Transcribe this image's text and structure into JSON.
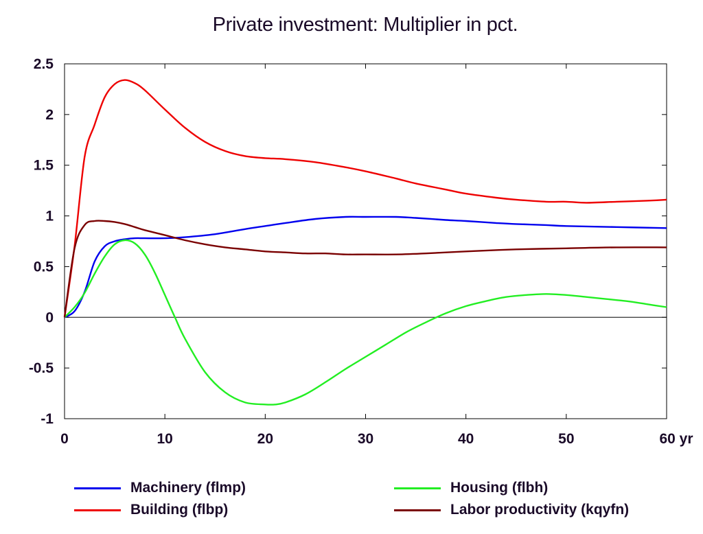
{
  "chart_data": {
    "type": "line",
    "title": "Private investment: Multiplier in pct.",
    "xlabel": "",
    "ylabel": "",
    "x_unit_label": "yr",
    "xlim": [
      0,
      60
    ],
    "ylim": [
      -1,
      2.5
    ],
    "x_ticks": [
      "0",
      "10",
      "20",
      "30",
      "40",
      "50",
      "60"
    ],
    "y_ticks": [
      "2.5",
      "2",
      "1.5",
      "1",
      "0.5",
      "0",
      "-0.5",
      "-1"
    ],
    "grid": false,
    "legend_position": "bottom",
    "series": [
      {
        "name": "Machinery (flmp)",
        "color": "#0000ee",
        "x": [
          0,
          1,
          2,
          3,
          4,
          5,
          6,
          7,
          8,
          10,
          12,
          15,
          18,
          20,
          22,
          25,
          28,
          30,
          33,
          35,
          38,
          40,
          43,
          45,
          48,
          50,
          55,
          60
        ],
        "y": [
          0,
          0.06,
          0.25,
          0.55,
          0.7,
          0.75,
          0.77,
          0.78,
          0.78,
          0.78,
          0.79,
          0.82,
          0.87,
          0.9,
          0.93,
          0.97,
          0.99,
          0.99,
          0.99,
          0.98,
          0.96,
          0.95,
          0.93,
          0.92,
          0.91,
          0.9,
          0.89,
          0.88
        ]
      },
      {
        "name": "Building (flbp)",
        "color": "#ee0000",
        "x": [
          0,
          1,
          2,
          3,
          4,
          5,
          6,
          7,
          8,
          10,
          12,
          14,
          16,
          18,
          20,
          22,
          25,
          28,
          30,
          33,
          35,
          38,
          40,
          43,
          45,
          48,
          50,
          52,
          55,
          58,
          60
        ],
        "y": [
          0,
          0.7,
          1.58,
          1.9,
          2.17,
          2.3,
          2.34,
          2.31,
          2.24,
          2.05,
          1.87,
          1.73,
          1.64,
          1.59,
          1.57,
          1.56,
          1.53,
          1.48,
          1.44,
          1.37,
          1.32,
          1.26,
          1.22,
          1.18,
          1.16,
          1.14,
          1.14,
          1.13,
          1.14,
          1.15,
          1.16
        ]
      },
      {
        "name": "Housing (flbh)",
        "color": "#22ee22",
        "x": [
          0,
          1,
          2,
          3,
          4,
          5,
          6,
          7,
          8,
          9,
          10,
          11,
          12,
          14,
          16,
          18,
          20,
          21,
          22,
          24,
          26,
          28,
          30,
          32,
          34,
          36,
          38,
          40,
          42,
          44,
          46,
          48,
          50,
          52,
          54,
          56,
          58,
          60
        ],
        "y": [
          0,
          0.1,
          0.24,
          0.43,
          0.6,
          0.72,
          0.76,
          0.73,
          0.62,
          0.44,
          0.22,
          0.0,
          -0.21,
          -0.54,
          -0.74,
          -0.84,
          -0.86,
          -0.86,
          -0.84,
          -0.76,
          -0.64,
          -0.51,
          -0.39,
          -0.27,
          -0.15,
          -0.05,
          0.04,
          0.11,
          0.16,
          0.2,
          0.22,
          0.23,
          0.22,
          0.2,
          0.18,
          0.16,
          0.13,
          0.1
        ]
      },
      {
        "name": "Labor productivity (kqyfn)",
        "color": "#7a0000",
        "x": [
          0,
          1,
          2,
          3,
          4,
          5,
          6,
          7,
          8,
          10,
          12,
          14,
          16,
          18,
          20,
          22,
          24,
          26,
          28,
          30,
          33,
          36,
          40,
          45,
          50,
          55,
          60
        ],
        "y": [
          0,
          0.68,
          0.91,
          0.95,
          0.95,
          0.94,
          0.92,
          0.89,
          0.86,
          0.81,
          0.76,
          0.72,
          0.69,
          0.67,
          0.65,
          0.64,
          0.63,
          0.63,
          0.62,
          0.62,
          0.62,
          0.63,
          0.65,
          0.67,
          0.68,
          0.69,
          0.69
        ]
      }
    ]
  },
  "legend": [
    {
      "label": "Machinery (flmp)",
      "color": "#0000ee"
    },
    {
      "label": "Building (flbp)",
      "color": "#ee0000"
    },
    {
      "label": "Housing (flbh)",
      "color": "#22ee22"
    },
    {
      "label": "Labor productivity (kqyfn)",
      "color": "#7a0000"
    }
  ]
}
